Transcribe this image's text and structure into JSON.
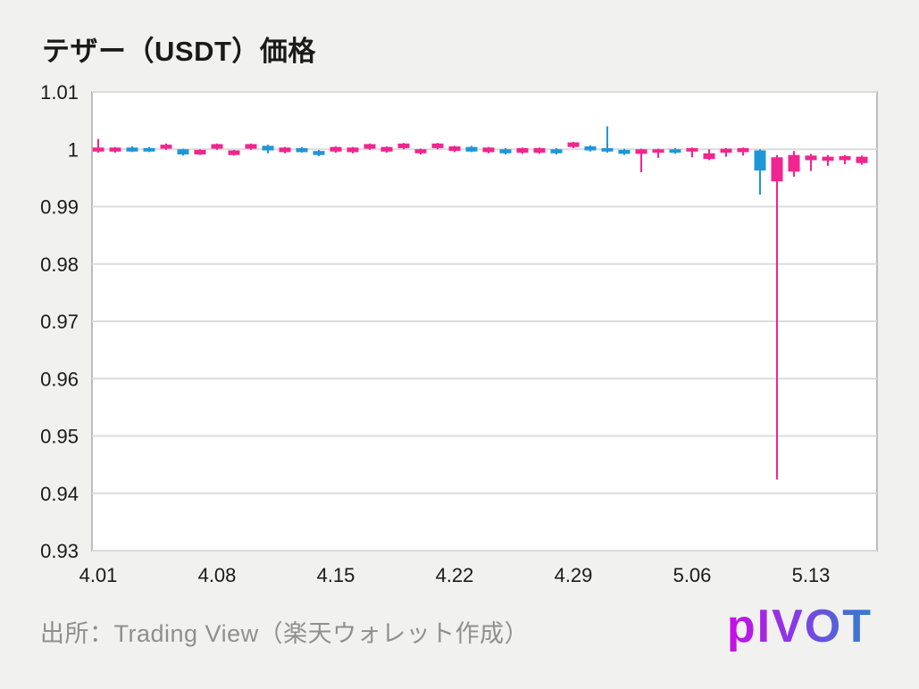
{
  "header": {
    "title": "テザー（USDT）価格"
  },
  "chart_data": {
    "type": "candlestick",
    "title": "テザー（USDT）価格",
    "xlabel": "",
    "ylabel": "",
    "ylim": [
      0.93,
      1.01
    ],
    "grid": "horizontal",
    "legend": "none",
    "ytick_values": [
      1.01,
      1.0,
      0.99,
      0.98,
      0.97,
      0.96,
      0.95,
      0.94,
      0.93
    ],
    "ytick_labels": [
      "1.01",
      "1",
      "0.99",
      "0.98",
      "0.97",
      "0.96",
      "0.95",
      "0.94",
      "0.93"
    ],
    "xtick_labels": [
      "4.01",
      "4.08",
      "4.15",
      "4.22",
      "4.29",
      "5.06",
      "5.13"
    ],
    "xtick_step": 7,
    "colors": {
      "up": "#F0258F",
      "down": "#1E97D6",
      "grid": "#DCDCDC",
      "border": "#BDBDBD",
      "plot_bg": "#FFFFFF",
      "page_bg": "#F1F1EF",
      "tick_text": "#1A1A1A"
    },
    "candles": [
      {
        "t": "4.01",
        "o": 0.9996,
        "h": 1.0018,
        "l": 0.9994,
        "c": 1.0003
      },
      {
        "t": "4.02",
        "o": 0.9996,
        "h": 1.0004,
        "l": 0.9994,
        "c": 1.0003
      },
      {
        "t": "4.03",
        "o": 1.0003,
        "h": 1.0005,
        "l": 0.9995,
        "c": 0.9996
      },
      {
        "t": "4.04",
        "o": 1.0002,
        "h": 1.0004,
        "l": 0.9995,
        "c": 0.9996
      },
      {
        "t": "4.05",
        "o": 1.0001,
        "h": 1.001,
        "l": 0.9999,
        "c": 1.0008
      },
      {
        "t": "4.06",
        "o": 1.0,
        "h": 1.0001,
        "l": 0.9989,
        "c": 0.9991
      },
      {
        "t": "4.07",
        "o": 0.9991,
        "h": 1.0,
        "l": 0.999,
        "c": 0.9999
      },
      {
        "t": "4.08",
        "o": 1.0001,
        "h": 1.001,
        "l": 0.9999,
        "c": 1.0009
      },
      {
        "t": "4.09",
        "o": 0.999,
        "h": 0.9999,
        "l": 0.9989,
        "c": 0.9998
      },
      {
        "t": "4.10",
        "o": 1.0001,
        "h": 1.001,
        "l": 0.9999,
        "c": 1.0009
      },
      {
        "t": "4.11",
        "o": 1.0006,
        "h": 1.0008,
        "l": 0.9993,
        "c": 0.9998
      },
      {
        "t": "4.12",
        "o": 0.9995,
        "h": 1.0004,
        "l": 0.9993,
        "c": 1.0003
      },
      {
        "t": "4.13",
        "o": 1.0002,
        "h": 1.0004,
        "l": 0.9994,
        "c": 0.9995
      },
      {
        "t": "4.14",
        "o": 0.9997,
        "h": 0.9999,
        "l": 0.9988,
        "c": 0.999
      },
      {
        "t": "4.15",
        "o": 0.9996,
        "h": 1.0005,
        "l": 0.9994,
        "c": 1.0004
      },
      {
        "t": "4.16",
        "o": 0.9995,
        "h": 1.0004,
        "l": 0.9993,
        "c": 1.0003
      },
      {
        "t": "4.17",
        "o": 1.0001,
        "h": 1.001,
        "l": 0.9999,
        "c": 1.0009
      },
      {
        "t": "4.18",
        "o": 0.9996,
        "h": 1.0005,
        "l": 0.9994,
        "c": 1.0004
      },
      {
        "t": "4.19",
        "o": 1.0002,
        "h": 1.0011,
        "l": 1.0,
        "c": 1.001
      },
      {
        "t": "4.20",
        "o": 0.9993,
        "h": 1.0001,
        "l": 0.9991,
        "c": 1.0
      },
      {
        "t": "4.21",
        "o": 1.0002,
        "h": 1.0011,
        "l": 1.0,
        "c": 1.001
      },
      {
        "t": "4.22",
        "o": 0.9997,
        "h": 1.0006,
        "l": 0.9995,
        "c": 1.0005
      },
      {
        "t": "4.23",
        "o": 1.0004,
        "h": 1.0006,
        "l": 0.9995,
        "c": 0.9996
      },
      {
        "t": "4.24",
        "o": 0.9995,
        "h": 1.0004,
        "l": 0.9993,
        "c": 1.0003
      },
      {
        "t": "4.25",
        "o": 1.0,
        "h": 1.0002,
        "l": 0.9991,
        "c": 0.9993
      },
      {
        "t": "4.26",
        "o": 0.9994,
        "h": 1.0003,
        "l": 0.9992,
        "c": 1.0002
      },
      {
        "t": "4.27",
        "o": 0.9994,
        "h": 1.0003,
        "l": 0.9992,
        "c": 1.0002
      },
      {
        "t": "4.28",
        "o": 1.0,
        "h": 1.0002,
        "l": 0.9991,
        "c": 0.9993
      },
      {
        "t": "4.29",
        "o": 1.0004,
        "h": 1.0013,
        "l": 1.0002,
        "c": 1.0012
      },
      {
        "t": "4.30",
        "o": 1.0005,
        "h": 1.0007,
        "l": 0.9996,
        "c": 0.9998
      },
      {
        "t": "5.01",
        "o": 1.0002,
        "h": 1.004,
        "l": 0.9994,
        "c": 0.9996
      },
      {
        "t": "5.02",
        "o": 0.9999,
        "h": 1.0001,
        "l": 0.999,
        "c": 0.9992
      },
      {
        "t": "5.03",
        "o": 0.9992,
        "h": 1.0001,
        "l": 0.996,
        "c": 1.0
      },
      {
        "t": "5.04",
        "o": 0.9994,
        "h": 1.0001,
        "l": 0.9985,
        "c": 1.0
      },
      {
        "t": "5.05",
        "o": 1.0,
        "h": 1.0002,
        "l": 0.9992,
        "c": 0.9994
      },
      {
        "t": "5.06",
        "o": 0.9996,
        "h": 1.0003,
        "l": 0.9986,
        "c": 1.0002
      },
      {
        "t": "5.07",
        "o": 0.9983,
        "h": 1.0,
        "l": 0.9981,
        "c": 0.9993
      },
      {
        "t": "5.08",
        "o": 0.9994,
        "h": 1.0002,
        "l": 0.9987,
        "c": 1.0001
      },
      {
        "t": "5.09",
        "o": 0.9995,
        "h": 1.0003,
        "l": 0.9989,
        "c": 1.0002
      },
      {
        "t": "5.10",
        "o": 0.9998,
        "h": 1.0,
        "l": 0.9921,
        "c": 0.9963
      },
      {
        "t": "5.11",
        "o": 0.9944,
        "h": 0.999,
        "l": 0.9424,
        "c": 0.9986
      },
      {
        "t": "5.12",
        "o": 0.9961,
        "h": 0.9997,
        "l": 0.9952,
        "c": 0.999
      },
      {
        "t": "5.13",
        "o": 0.9981,
        "h": 0.9992,
        "l": 0.9962,
        "c": 0.9989
      },
      {
        "t": "5.14",
        "o": 0.998,
        "h": 0.999,
        "l": 0.9971,
        "c": 0.9987
      },
      {
        "t": "5.15",
        "o": 0.9981,
        "h": 0.999,
        "l": 0.9974,
        "c": 0.9988
      },
      {
        "t": "5.16",
        "o": 0.9976,
        "h": 0.9989,
        "l": 0.9973,
        "c": 0.9987
      }
    ]
  },
  "footer": {
    "source": "出所：Trading View（楽天ウォレット作成）",
    "logo_first": "p",
    "logo_rest": "ivot"
  }
}
